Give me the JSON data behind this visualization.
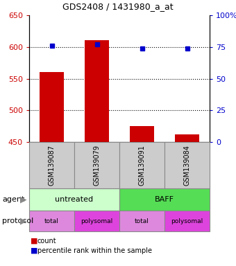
{
  "title": "GDS2408 / 1431980_a_at",
  "samples": [
    "GSM139087",
    "GSM139079",
    "GSM139091",
    "GSM139084"
  ],
  "bar_values": [
    560,
    611,
    475,
    462
  ],
  "percentile_values": [
    76,
    77,
    74,
    74
  ],
  "bar_color": "#cc0000",
  "dot_color": "#0000cc",
  "ylim_left": [
    450,
    650
  ],
  "ylim_right": [
    0,
    100
  ],
  "yticks_left": [
    450,
    500,
    550,
    600,
    650
  ],
  "yticks_right": [
    0,
    25,
    50,
    75,
    100
  ],
  "ytick_labels_right": [
    "0",
    "25",
    "50",
    "75",
    "100%"
  ],
  "grid_values": [
    500,
    550,
    600
  ],
  "agent_untreated": "untreated",
  "agent_baff": "BAFF",
  "protocol_labels": [
    "total",
    "polysomal",
    "total",
    "polysomal"
  ],
  "agent_color_untreated": "#ccffcc",
  "agent_color_baff": "#55dd55",
  "protocol_color_total": "#dd88dd",
  "protocol_color_polysomal": "#dd44dd",
  "sample_box_color": "#cccccc",
  "legend_count_color": "#cc0000",
  "legend_dot_color": "#0000cc",
  "bar_bottom": 450,
  "tick_label_color_left": "#cc0000",
  "tick_label_color_right": "#0000cc",
  "arrow_color": "#888888"
}
